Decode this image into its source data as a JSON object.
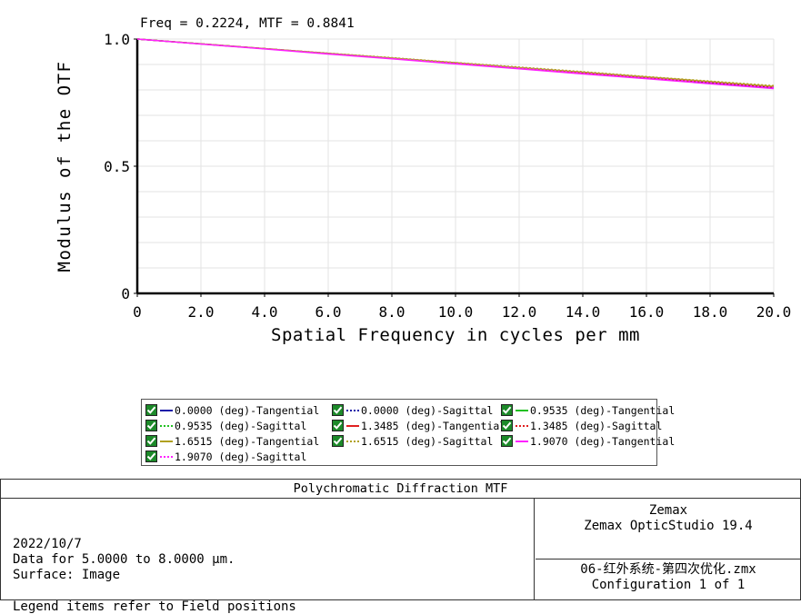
{
  "chart_data": {
    "type": "line",
    "title": "",
    "cursor_readout": "Freq = 0.2224, MTF = 0.8841",
    "xlabel": "Spatial Frequency in cycles per mm",
    "ylabel": "Modulus of the OTF",
    "xlim": [
      0,
      20
    ],
    "ylim": [
      0,
      1
    ],
    "x_ticks": [
      0,
      2,
      4,
      6,
      8,
      10,
      12,
      14,
      16,
      18,
      20
    ],
    "x_tick_labels": [
      "0",
      "2.0",
      "4.0",
      "6.0",
      "8.0",
      "10.0",
      "12.0",
      "14.0",
      "16.0",
      "18.0",
      "20.0"
    ],
    "y_ticks": [
      0,
      0.5,
      1.0
    ],
    "y_tick_labels": [
      "0",
      "0.5",
      "1.0"
    ],
    "grid": true,
    "x": [
      0,
      2,
      4,
      6,
      8,
      10,
      12,
      14,
      16,
      18,
      20
    ],
    "series": [
      {
        "name": "0.0000 (deg)-Tangential",
        "color": "#1a1aa8",
        "dash": "solid",
        "checked": true,
        "values": [
          1.0,
          0.981,
          0.962,
          0.943,
          0.924,
          0.905,
          0.886,
          0.866,
          0.847,
          0.828,
          0.809
        ]
      },
      {
        "name": "0.0000 (deg)-Sagittal",
        "color": "#1a1aa8",
        "dash": "dotted",
        "checked": true,
        "values": [
          1.0,
          0.981,
          0.962,
          0.943,
          0.924,
          0.905,
          0.886,
          0.866,
          0.847,
          0.828,
          0.809
        ]
      },
      {
        "name": "0.9535 (deg)-Tangential",
        "color": "#22c022",
        "dash": "solid",
        "checked": true,
        "values": [
          1.0,
          0.981,
          0.962,
          0.943,
          0.925,
          0.906,
          0.887,
          0.868,
          0.849,
          0.831,
          0.812
        ]
      },
      {
        "name": "0.9535 (deg)-Sagittal",
        "color": "#22c022",
        "dash": "dotted",
        "checked": true,
        "values": [
          1.0,
          0.981,
          0.962,
          0.944,
          0.925,
          0.906,
          0.888,
          0.869,
          0.85,
          0.832,
          0.813
        ]
      },
      {
        "name": "1.3485 (deg)-Tangential",
        "color": "#e02020",
        "dash": "solid",
        "checked": true,
        "values": [
          1.0,
          0.981,
          0.962,
          0.943,
          0.924,
          0.906,
          0.887,
          0.868,
          0.849,
          0.83,
          0.811
        ]
      },
      {
        "name": "1.3485 (deg)-Sagittal",
        "color": "#e02020",
        "dash": "dotted",
        "checked": true,
        "values": [
          1.0,
          0.981,
          0.963,
          0.944,
          0.926,
          0.907,
          0.889,
          0.87,
          0.852,
          0.833,
          0.815
        ]
      },
      {
        "name": "1.6515 (deg)-Tangential",
        "color": "#b0a020",
        "dash": "solid",
        "checked": true,
        "values": [
          1.0,
          0.981,
          0.962,
          0.944,
          0.925,
          0.907,
          0.888,
          0.87,
          0.851,
          0.833,
          0.814
        ]
      },
      {
        "name": "1.6515 (deg)-Sagittal",
        "color": "#b0a020",
        "dash": "dotted",
        "checked": true,
        "values": [
          1.0,
          0.982,
          0.963,
          0.945,
          0.927,
          0.908,
          0.89,
          0.872,
          0.853,
          0.835,
          0.817
        ]
      },
      {
        "name": "1.9070 (deg)-Tangential",
        "color": "#ff22ff",
        "dash": "solid",
        "checked": true,
        "values": [
          1.0,
          0.98,
          0.961,
          0.941,
          0.922,
          0.902,
          0.883,
          0.863,
          0.844,
          0.824,
          0.805
        ]
      },
      {
        "name": "1.9070 (deg)-Sagittal",
        "color": "#ff22ff",
        "dash": "dotted",
        "checked": true,
        "values": [
          1.0,
          0.981,
          0.962,
          0.943,
          0.924,
          0.905,
          0.886,
          0.867,
          0.848,
          0.829,
          0.81
        ]
      }
    ]
  },
  "info": {
    "title": "Polychromatic Diffraction MTF",
    "date": "2022/10/7",
    "data_range": "Data for 5.0000 to 8.0000 µm.",
    "surface": "Surface: Image",
    "legend_note": "Legend items refer to Field positions",
    "company": "Zemax",
    "product": "Zemax OpticStudio 19.4",
    "filename": "06-红外系统-第四次优化.zmx",
    "configuration": "Configuration 1 of 1"
  }
}
